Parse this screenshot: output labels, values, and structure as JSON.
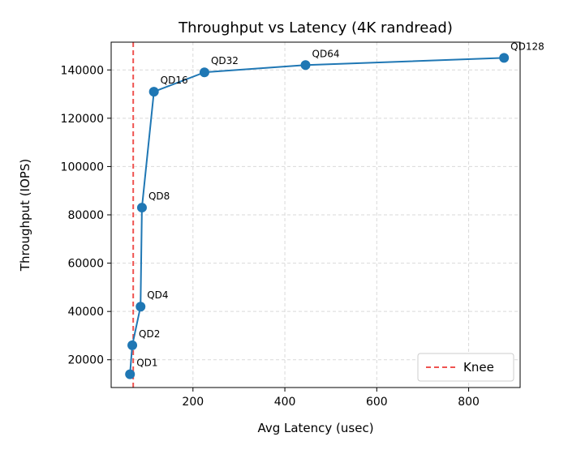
{
  "chart_data": {
    "type": "line",
    "title": "Throughput vs Latency (4K randread)",
    "xlabel": "Avg Latency (usec)",
    "ylabel": "Throughput (IOPS)",
    "xlim": [
      22,
      912
    ],
    "ylim": [
      8500,
      151500
    ],
    "xticks": [
      200,
      400,
      600,
      800
    ],
    "yticks": [
      20000,
      40000,
      60000,
      80000,
      100000,
      120000,
      140000
    ],
    "grid": true,
    "legend_position": "lower-right",
    "series": [
      {
        "color": "#1f77b4",
        "points": [
          {
            "label": "QD1",
            "x": 63,
            "y": 14000
          },
          {
            "label": "QD2",
            "x": 68,
            "y": 26000
          },
          {
            "label": "QD4",
            "x": 86,
            "y": 42000
          },
          {
            "label": "QD8",
            "x": 89,
            "y": 83000
          },
          {
            "label": "QD16",
            "x": 115,
            "y": 131000
          },
          {
            "label": "QD32",
            "x": 225,
            "y": 139000
          },
          {
            "label": "QD64",
            "x": 445,
            "y": 142000
          },
          {
            "label": "QD128",
            "x": 877,
            "y": 145000
          }
        ]
      }
    ],
    "reference_line": {
      "name": "Knee",
      "orientation": "vertical",
      "x": 70,
      "color": "#ef5350",
      "style": "dashed"
    }
  }
}
